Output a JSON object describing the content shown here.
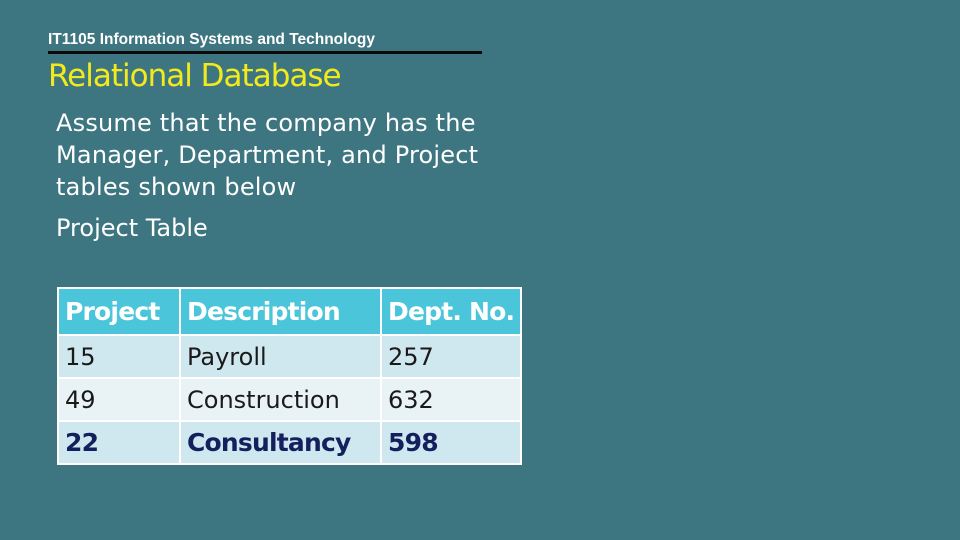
{
  "slide": {
    "course": "IT1105 Information Systems and Technology",
    "title": "Relational Database",
    "body": "Assume that the company has the Manager, Department, and Project tables shown below",
    "caption": "Project Table"
  },
  "colors": {
    "background": "#3d7680",
    "title": "#f2ea1c",
    "header_fill": "#4bc5d9",
    "row_fill": "#cfe7ee",
    "row_fill_alt": "#e9f3f6",
    "bold_row_text": "#14205e"
  },
  "table": {
    "headers": [
      "Project",
      "Description",
      "Dept. No."
    ],
    "rows": [
      [
        "15",
        "Payroll",
        "257"
      ],
      [
        "49",
        "Construction",
        "632"
      ],
      [
        "22",
        "Consultancy",
        "598"
      ]
    ]
  }
}
